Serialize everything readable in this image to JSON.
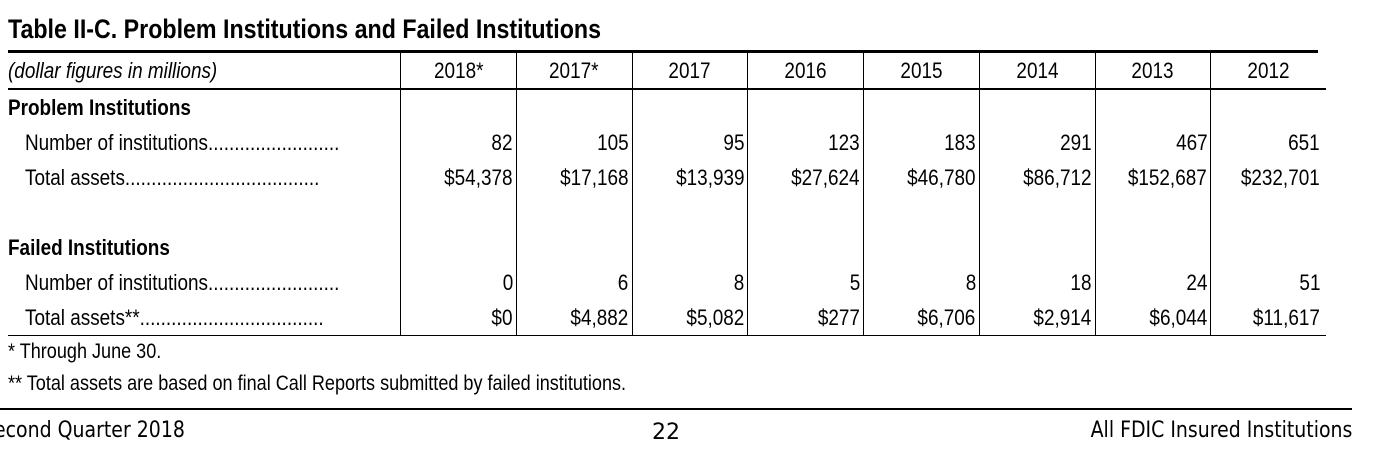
{
  "title": "Table II-C. Problem Institutions and Failed Institutions",
  "header": {
    "units": "(dollar figures in millions)",
    "years": [
      "2018*",
      "2017*",
      "2017",
      "2016",
      "2015",
      "2014",
      "2013",
      "2012"
    ]
  },
  "problem": {
    "heading": "Problem Institutions",
    "number_label": "Number of institutions.........................",
    "number_values": [
      "82",
      "105",
      "95",
      "123",
      "183",
      "291",
      "467",
      "651"
    ],
    "assets_label": "Total assets.....................................",
    "assets_values": [
      "$54,378",
      "$17,168",
      "$13,939",
      "$27,624",
      "$46,780",
      "$86,712",
      "$152,687",
      "$232,701"
    ]
  },
  "failed": {
    "heading": "Failed Institutions",
    "number_label": "Number of institutions.........................",
    "number_values": [
      "0",
      "6",
      "8",
      "5",
      "8",
      "18",
      "24",
      "51"
    ],
    "assets_label": "Total assets**...................................",
    "assets_values": [
      "$0",
      "$4,882",
      "$5,082",
      "$277",
      "$6,706",
      "$2,914",
      "$6,044",
      "$11,617"
    ]
  },
  "notes": {
    "note1": "* Through June 30.",
    "note2": "** Total assets are based on final Call Reports submitted by failed institutions."
  },
  "footer": {
    "left": "econd Quarter 2018",
    "page": "22",
    "right": "All FDIC Insured Institutions"
  }
}
